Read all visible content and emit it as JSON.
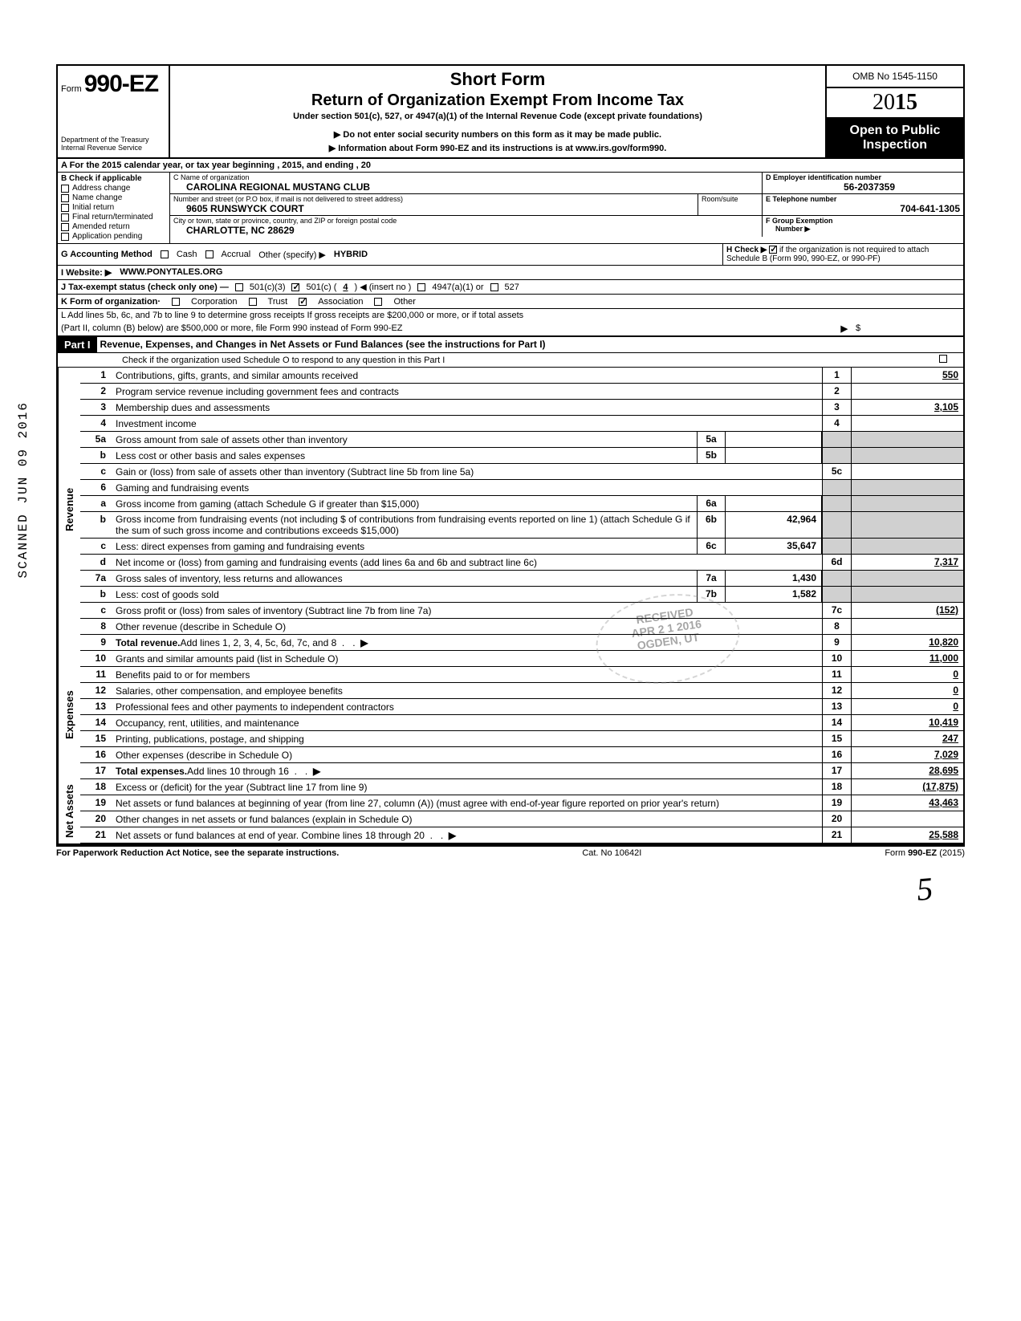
{
  "header": {
    "form_prefix": "Form",
    "form_number": "990-EZ",
    "title1": "Short Form",
    "title2": "Return of Organization Exempt From Income Tax",
    "subtitle1": "Under section 501(c), 527, or 4947(a)(1) of the Internal Revenue Code (except private foundations)",
    "subtitle2": "▶ Do not enter social security numbers on this form as it may be made public.",
    "subtitle3": "▶ Information about Form 990-EZ and its instructions is at www.irs.gov/form990.",
    "dept1": "Department of the Treasury",
    "dept2": "Internal Revenue Service",
    "omb": "OMB No 1545-1150",
    "year_prefix": "20",
    "year_bold": "15",
    "open1": "Open to Public",
    "open2": "Inspection"
  },
  "lineA": "A  For the 2015 calendar year, or tax year beginning                                                                          , 2015, and ending                                                    , 20",
  "B": {
    "heading": "B  Check if applicable",
    "items": [
      "Address change",
      "Name change",
      "Initial return",
      "Final return/terminated",
      "Amended return",
      "Application pending"
    ]
  },
  "C": {
    "label": "C  Name of organization",
    "name": "CAROLINA REGIONAL MUSTANG CLUB",
    "street_label": "Number and street (or P.O  box, if mail is not delivered to street address)",
    "room_label": "Room/suite",
    "street": "9605 RUNSWYCK COURT",
    "city_label": "City or town, state or province, country, and ZIP or foreign postal code",
    "city": "CHARLOTTE,   NC   28629"
  },
  "D": {
    "label": "D Employer identification number",
    "value": "56-2037359"
  },
  "E": {
    "label": "E  Telephone number",
    "value": "704-641-1305"
  },
  "F": {
    "label": "F  Group Exemption",
    "label2": "Number  ▶"
  },
  "G": {
    "label": "G  Accounting Method",
    "cash": "Cash",
    "accrual": "Accrual",
    "other": "Other (specify)  ▶",
    "value": "HYBRID"
  },
  "H": {
    "text": "H  Check  ▶",
    "tail": "if the organization is not required to attach Schedule B (Form 990, 990-EZ, or 990-PF)"
  },
  "I": {
    "label": "I   Website: ▶",
    "value": "WWW.PONYTALES.ORG"
  },
  "J": {
    "label": "J  Tax-exempt status (check only one) —",
    "c3": "501(c)(3)",
    "c": "501(c) (",
    "cnum": "4",
    "ctail": ")  ◀ (insert no )",
    "a": "4947(a)(1) or",
    "527": "527"
  },
  "K": {
    "label": "K  Form of organization·",
    "corp": "Corporation",
    "trust": "Trust",
    "assoc": "Association",
    "other": "Other"
  },
  "L": {
    "l1": "L  Add lines 5b, 6c, and 7b to line 9 to determine gross receipts  If gross receipts are $200,000 or more, or if total assets",
    "l2": "(Part II, column (B) below) are $500,000 or more, file Form 990 instead of Form 990-EZ",
    "arrow": "▶",
    "dollar": "$"
  },
  "part1": {
    "tag": "Part I",
    "title": "Revenue, Expenses, and Changes in Net Assets or Fund Balances (see the instructions for Part I)",
    "check": "Check if the organization used Schedule O to respond to any question in this Part I"
  },
  "side": {
    "revenue": "Revenue",
    "expenses": "Expenses",
    "netassets": "Net Assets"
  },
  "stamp": "SCANNED JUN 09 2016",
  "lines": {
    "l1": {
      "n": "1",
      "d": "Contributions, gifts, grants, and similar amounts received",
      "rn": "1",
      "rv": "550"
    },
    "l2": {
      "n": "2",
      "d": "Program service revenue including government fees and contracts",
      "rn": "2",
      "rv": ""
    },
    "l3": {
      "n": "3",
      "d": "Membership dues and assessments",
      "rn": "3",
      "rv": "3,105"
    },
    "l4": {
      "n": "4",
      "d": "Investment income",
      "rn": "4",
      "rv": ""
    },
    "l5a": {
      "n": "5a",
      "d": "Gross amount from sale of assets other than inventory",
      "mn": "5a",
      "mv": ""
    },
    "l5b": {
      "n": "b",
      "d": "Less  cost or other basis and sales expenses",
      "mn": "5b",
      "mv": ""
    },
    "l5c": {
      "n": "c",
      "d": "Gain or (loss) from sale of assets other than inventory (Subtract line 5b from line 5a)",
      "rn": "5c",
      "rv": ""
    },
    "l6": {
      "n": "6",
      "d": "Gaming and fundraising events"
    },
    "l6a": {
      "n": "a",
      "d": "Gross income from gaming (attach Schedule G if greater than $15,000)",
      "mn": "6a",
      "mv": ""
    },
    "l6b": {
      "n": "b",
      "d": "Gross income from fundraising events (not including  $                              of contributions from fundraising events reported on line 1) (attach Schedule G if the sum of such gross income and contributions exceeds $15,000)",
      "mn": "6b",
      "mv": "42,964"
    },
    "l6c": {
      "n": "c",
      "d": "Less: direct expenses from gaming and fundraising events",
      "mn": "6c",
      "mv": "35,647"
    },
    "l6d": {
      "n": "d",
      "d": "Net income or (loss) from gaming and fundraising events (add lines 6a and 6b and subtract line 6c)",
      "rn": "6d",
      "rv": "7,317"
    },
    "l7a": {
      "n": "7a",
      "d": "Gross sales of inventory, less returns and allowances",
      "mn": "7a",
      "mv": "1,430"
    },
    "l7b": {
      "n": "b",
      "d": "Less: cost of goods sold",
      "mn": "7b",
      "mv": "1,582"
    },
    "l7c": {
      "n": "c",
      "d": "Gross profit or (loss) from sales of inventory (Subtract line 7b from line 7a)",
      "rn": "7c",
      "rv": "(152)"
    },
    "l8": {
      "n": "8",
      "d": "Other revenue (describe in Schedule O)",
      "rn": "8",
      "rv": ""
    },
    "l9": {
      "n": "9",
      "d": "Total revenue. Add lines 1, 2, 3, 4, 5c, 6d, 7c, and 8",
      "rn": "9",
      "rv": "10,820",
      "bold": true,
      "arrow": true
    },
    "l10": {
      "n": "10",
      "d": "Grants and similar amounts paid (list in Schedule O)",
      "rn": "10",
      "rv": "11,000"
    },
    "l11": {
      "n": "11",
      "d": "Benefits paid to or for members",
      "rn": "11",
      "rv": "0"
    },
    "l12": {
      "n": "12",
      "d": "Salaries, other compensation, and employee benefits",
      "rn": "12",
      "rv": "0"
    },
    "l13": {
      "n": "13",
      "d": "Professional fees and other payments to independent contractors",
      "rn": "13",
      "rv": "0"
    },
    "l14": {
      "n": "14",
      "d": "Occupancy, rent, utilities, and maintenance",
      "rn": "14",
      "rv": "10,419"
    },
    "l15": {
      "n": "15",
      "d": "Printing, publications, postage, and shipping",
      "rn": "15",
      "rv": "247"
    },
    "l16": {
      "n": "16",
      "d": "Other expenses (describe in Schedule O)",
      "rn": "16",
      "rv": "7,029"
    },
    "l17": {
      "n": "17",
      "d": "Total expenses. Add lines 10 through 16",
      "rn": "17",
      "rv": "28,695",
      "bold": true,
      "arrow": true
    },
    "l18": {
      "n": "18",
      "d": "Excess or (deficit) for the year (Subtract line 17 from line 9)",
      "rn": "18",
      "rv": "(17,875)"
    },
    "l19": {
      "n": "19",
      "d": "Net assets or fund balances at beginning of year (from line 27, column (A)) (must agree with end-of-year figure reported on prior year's return)",
      "rn": "19",
      "rv": "43,463"
    },
    "l20": {
      "n": "20",
      "d": "Other changes in net assets or fund balances (explain in Schedule O)",
      "rn": "20",
      "rv": ""
    },
    "l21": {
      "n": "21",
      "d": "Net assets or fund balances at end of year. Combine lines 18 through 20",
      "rn": "21",
      "rv": "25,588",
      "arrow": true
    }
  },
  "received": {
    "l1": "RECEIVED",
    "l2": "APR 2 1 2016",
    "l3": "OGDEN, UT"
  },
  "footer": {
    "left": "For Paperwork Reduction Act Notice, see the separate instructions.",
    "mid": "Cat. No  10642I",
    "right": "Form 990-EZ (2015)"
  },
  "sig": "5"
}
